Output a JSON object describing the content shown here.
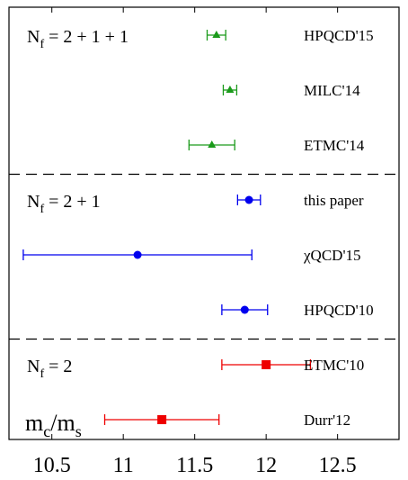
{
  "chart_data": {
    "type": "scatter",
    "title": "",
    "xlabel": "",
    "ylabel": "",
    "corner_label": "m c/m s",
    "corner_label_parts": {
      "base1": "m",
      "sub1": "c",
      "slash": "/",
      "base2": "m",
      "sub2": "s"
    },
    "xlim": [
      10.2,
      12.93
    ],
    "xticks": [
      10.5,
      11,
      11.5,
      12,
      12.5
    ],
    "xtick_labels": [
      "10.5",
      "11",
      "11.5",
      "12",
      "12.5"
    ],
    "groups": [
      {
        "label": {
          "base": "N",
          "sub": "f",
          "rest": " = 2 + 1 + 1"
        },
        "color": "#1a9a1a",
        "marker": "triangle",
        "entries": [
          {
            "name": "HPQCD'15",
            "value": 11.652,
            "lo": 11.587,
            "hi": 11.717
          },
          {
            "name": "MILC'14",
            "value": 11.747,
            "lo": 11.7,
            "hi": 11.794
          },
          {
            "name": "ETMC'14",
            "value": 11.62,
            "lo": 11.46,
            "hi": 11.78
          }
        ]
      },
      {
        "label": {
          "base": "N",
          "sub": "f",
          "rest": " = 2 + 1"
        },
        "color": "#0000ee",
        "marker": "circle",
        "entries": [
          {
            "name": "this paper",
            "value": 11.88,
            "lo": 11.8,
            "hi": 11.96
          },
          {
            "name": "χQCD'15",
            "value": 11.1,
            "lo": 10.3,
            "hi": 11.9
          },
          {
            "name": "HPQCD'10",
            "value": 11.85,
            "lo": 11.69,
            "hi": 12.01
          }
        ]
      },
      {
        "label": {
          "base": "N",
          "sub": "f",
          "rest": " = 2"
        },
        "color": "#ee0000",
        "marker": "square",
        "entries": [
          {
            "name": "ETMC'10",
            "value": 12.0,
            "lo": 11.69,
            "hi": 12.31
          },
          {
            "name": "Durr'12",
            "value": 11.27,
            "lo": 10.87,
            "hi": 11.67
          }
        ]
      }
    ]
  }
}
